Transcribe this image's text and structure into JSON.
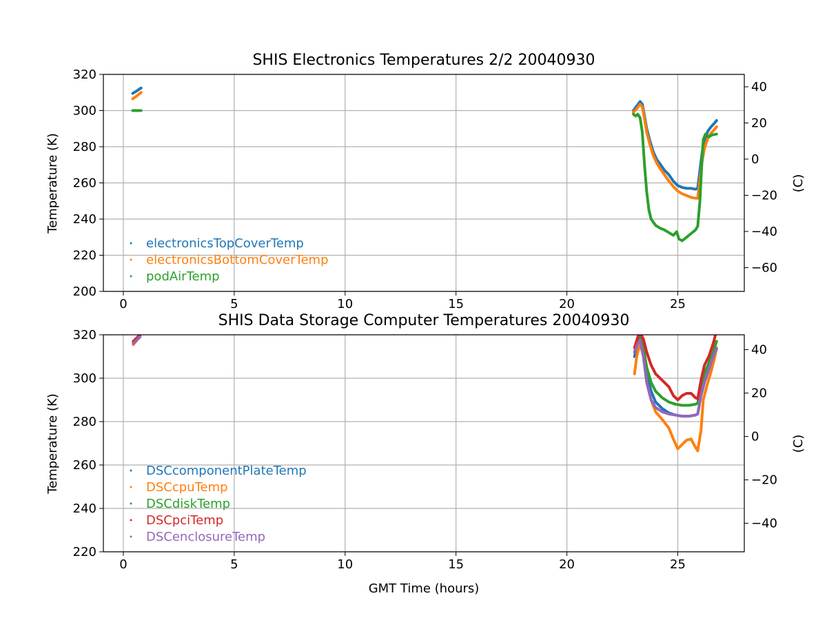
{
  "chart_data": [
    {
      "type": "line",
      "title": "SHIS Electronics Temperatures 2/2 20040930",
      "xlabel": "",
      "ylabel": "Temperature (K)",
      "y2label": "(C)",
      "xlim": [
        -0.9,
        28.0
      ],
      "ylim": [
        200,
        320
      ],
      "y2lim": [
        -73.15,
        46.85
      ],
      "xticks": [
        0,
        5,
        10,
        15,
        20,
        25
      ],
      "yticks": [
        200,
        220,
        240,
        260,
        280,
        300,
        320
      ],
      "y2ticks": [
        -60,
        -40,
        -20,
        0,
        20,
        40
      ],
      "grid": true,
      "legend_position": "lower-left",
      "series": [
        {
          "name": "electronicsTopCoverTemp",
          "color": "#1f77b4",
          "segments": [
            [
              [
                0.42,
                309.5
              ],
              [
                0.6,
                310.8
              ],
              [
                0.8,
                312.5
              ]
            ],
            [
              [
                23.0,
                300.0
              ],
              [
                23.15,
                302.5
              ],
              [
                23.3,
                305.0
              ],
              [
                23.4,
                303.5
              ],
              [
                23.5,
                297.0
              ],
              [
                23.6,
                290.0
              ],
              [
                23.75,
                283.0
              ],
              [
                23.9,
                277.0
              ],
              [
                24.05,
                273.0
              ],
              [
                24.2,
                270.5
              ],
              [
                24.4,
                267.0
              ],
              [
                24.6,
                264.5
              ],
              [
                24.8,
                261.0
              ],
              [
                25.0,
                258.5
              ],
              [
                25.2,
                257.5
              ],
              [
                25.4,
                257.0
              ],
              [
                25.6,
                257.0
              ],
              [
                25.8,
                256.5
              ],
              [
                25.9,
                257.0
              ],
              [
                26.0,
                267.0
              ],
              [
                26.1,
                277.0
              ],
              [
                26.2,
                283.0
              ],
              [
                26.35,
                288.5
              ],
              [
                26.5,
                291.0
              ],
              [
                26.65,
                293.0
              ],
              [
                26.75,
                294.5
              ]
            ]
          ]
        },
        {
          "name": "electronicsBottomCoverTemp",
          "color": "#ff7f0e",
          "segments": [
            [
              [
                0.42,
                306.5
              ],
              [
                0.6,
                308.0
              ],
              [
                0.8,
                310.0
              ]
            ],
            [
              [
                23.0,
                299.0
              ],
              [
                23.15,
                301.0
              ],
              [
                23.3,
                303.5
              ],
              [
                23.4,
                302.0
              ],
              [
                23.5,
                295.5
              ],
              [
                23.6,
                288.0
              ],
              [
                23.75,
                281.0
              ],
              [
                23.9,
                275.0
              ],
              [
                24.05,
                271.0
              ],
              [
                24.2,
                268.0
              ],
              [
                24.4,
                264.5
              ],
              [
                24.6,
                261.0
              ],
              [
                24.8,
                258.0
              ],
              [
                25.0,
                255.5
              ],
              [
                25.2,
                254.0
              ],
              [
                25.4,
                253.0
              ],
              [
                25.6,
                252.0
              ],
              [
                25.8,
                251.5
              ],
              [
                25.9,
                251.5
              ],
              [
                26.0,
                262.0
              ],
              [
                26.1,
                272.0
              ],
              [
                26.2,
                279.0
              ],
              [
                26.35,
                284.5
              ],
              [
                26.5,
                287.5
              ],
              [
                26.65,
                289.5
              ],
              [
                26.75,
                291.0
              ]
            ]
          ]
        },
        {
          "name": "podAirTemp",
          "color": "#2ca02c",
          "segments": [
            [
              [
                0.42,
                300.0
              ],
              [
                0.6,
                300.0
              ],
              [
                0.8,
                300.0
              ]
            ],
            [
              [
                23.0,
                298.0
              ],
              [
                23.1,
                297.0
              ],
              [
                23.2,
                298.0
              ],
              [
                23.3,
                296.0
              ],
              [
                23.4,
                288.0
              ],
              [
                23.5,
                270.0
              ],
              [
                23.6,
                255.0
              ],
              [
                23.7,
                245.0
              ],
              [
                23.8,
                240.0
              ],
              [
                24.0,
                236.5
              ],
              [
                24.2,
                235.0
              ],
              [
                24.4,
                234.0
              ],
              [
                24.6,
                232.5
              ],
              [
                24.8,
                231.0
              ],
              [
                24.95,
                233.0
              ],
              [
                25.05,
                229.0
              ],
              [
                25.2,
                228.0
              ],
              [
                25.4,
                230.0
              ],
              [
                25.6,
                232.0
              ],
              [
                25.8,
                234.0
              ],
              [
                25.9,
                236.0
              ],
              [
                26.0,
                250.0
              ],
              [
                26.1,
                275.0
              ],
              [
                26.15,
                284.0
              ],
              [
                26.25,
                287.0
              ],
              [
                26.4,
                285.5
              ],
              [
                26.55,
                286.5
              ],
              [
                26.75,
                287.0
              ]
            ]
          ]
        }
      ]
    },
    {
      "type": "line",
      "title": "SHIS Data Storage Computer Temperatures 20040930",
      "xlabel": "GMT Time (hours)",
      "ylabel": "Temperature (K)",
      "y2label": "(C)",
      "xlim": [
        -0.9,
        28.0
      ],
      "ylim": [
        220,
        320
      ],
      "y2lim": [
        -53.15,
        46.85
      ],
      "xticks": [
        0,
        5,
        10,
        15,
        20,
        25
      ],
      "yticks": [
        220,
        240,
        260,
        280,
        300,
        320
      ],
      "y2ticks": [
        -40,
        -20,
        0,
        20,
        40
      ],
      "grid": true,
      "legend_position": "lower-left",
      "series": [
        {
          "name": "DSCcomponentPlateTemp",
          "color": "#1f77b4",
          "segments": [
            [
              [
                0.45,
                316.0
              ],
              [
                0.65,
                318.5
              ],
              [
                0.75,
                319.5
              ]
            ],
            [
              [
                23.05,
                310.0
              ],
              [
                23.2,
                316.0
              ],
              [
                23.3,
                318.5
              ],
              [
                23.45,
                312.0
              ],
              [
                23.6,
                302.0
              ],
              [
                23.8,
                294.0
              ],
              [
                24.0,
                289.0
              ],
              [
                24.3,
                286.0
              ],
              [
                24.6,
                284.0
              ],
              [
                24.9,
                283.0
              ],
              [
                25.2,
                282.5
              ],
              [
                25.5,
                282.5
              ],
              [
                25.8,
                283.0
              ],
              [
                25.9,
                283.5
              ],
              [
                26.05,
                292.0
              ],
              [
                26.2,
                298.0
              ],
              [
                26.4,
                304.0
              ],
              [
                26.6,
                310.0
              ],
              [
                26.75,
                313.5
              ]
            ]
          ]
        },
        {
          "name": "DSCcpuTemp",
          "color": "#ff7f0e",
          "segments": [
            [
              [
                0.45,
                315.5
              ],
              [
                0.65,
                318.0
              ],
              [
                0.75,
                319.0
              ]
            ],
            [
              [
                23.05,
                302.0
              ],
              [
                23.15,
                310.0
              ],
              [
                23.3,
                316.0
              ],
              [
                23.45,
                310.0
              ],
              [
                23.6,
                298.0
              ],
              [
                23.8,
                290.0
              ],
              [
                24.0,
                284.5
              ],
              [
                24.3,
                281.0
              ],
              [
                24.6,
                277.0
              ],
              [
                24.8,
                272.0
              ],
              [
                25.0,
                267.5
              ],
              [
                25.2,
                269.5
              ],
              [
                25.4,
                271.5
              ],
              [
                25.6,
                272.0
              ],
              [
                25.75,
                269.0
              ],
              [
                25.9,
                266.5
              ],
              [
                26.05,
                276.0
              ],
              [
                26.15,
                290.0
              ],
              [
                26.3,
                296.0
              ],
              [
                26.5,
                303.0
              ],
              [
                26.65,
                309.0
              ],
              [
                26.75,
                314.0
              ]
            ]
          ]
        },
        {
          "name": "DSCdiskTemp",
          "color": "#2ca02c",
          "segments": [
            [
              [
                0.45,
                316.5
              ],
              [
                0.65,
                318.5
              ],
              [
                0.75,
                319.5
              ]
            ],
            [
              [
                23.05,
                312.0
              ],
              [
                23.2,
                317.0
              ],
              [
                23.3,
                319.0
              ],
              [
                23.45,
                314.0
              ],
              [
                23.6,
                305.0
              ],
              [
                23.8,
                298.0
              ],
              [
                24.0,
                294.0
              ],
              [
                24.3,
                291.0
              ],
              [
                24.6,
                289.0
              ],
              [
                24.9,
                288.0
              ],
              [
                25.2,
                287.5
              ],
              [
                25.5,
                287.5
              ],
              [
                25.8,
                288.0
              ],
              [
                25.9,
                288.5
              ],
              [
                26.05,
                296.0
              ],
              [
                26.2,
                302.0
              ],
              [
                26.4,
                307.0
              ],
              [
                26.6,
                312.0
              ],
              [
                26.75,
                317.0
              ]
            ]
          ]
        },
        {
          "name": "DSCpciTemp",
          "color": "#d62728",
          "segments": [
            [
              [
                0.45,
                317.0
              ],
              [
                0.65,
                319.0
              ],
              [
                0.75,
                320.0
              ]
            ],
            [
              [
                23.05,
                314.0
              ],
              [
                23.2,
                319.0
              ],
              [
                23.3,
                321.0
              ],
              [
                23.45,
                318.0
              ],
              [
                23.6,
                312.0
              ],
              [
                23.8,
                306.0
              ],
              [
                24.0,
                302.0
              ],
              [
                24.3,
                299.0
              ],
              [
                24.6,
                296.0
              ],
              [
                24.8,
                292.0
              ],
              [
                25.0,
                290.0
              ],
              [
                25.2,
                292.0
              ],
              [
                25.4,
                293.0
              ],
              [
                25.6,
                293.0
              ],
              [
                25.8,
                291.0
              ],
              [
                25.9,
                290.5
              ],
              [
                26.05,
                299.0
              ],
              [
                26.2,
                306.0
              ],
              [
                26.4,
                310.0
              ],
              [
                26.6,
                316.0
              ],
              [
                26.75,
                322.0
              ]
            ]
          ]
        },
        {
          "name": "DSCenclosureTemp",
          "color": "#9467bd",
          "segments": [
            [
              [
                0.45,
                316.0
              ],
              [
                0.65,
                318.0
              ],
              [
                0.75,
                319.0
              ]
            ],
            [
              [
                23.05,
                312.0
              ],
              [
                23.2,
                316.0
              ],
              [
                23.3,
                317.5
              ],
              [
                23.45,
                310.0
              ],
              [
                23.6,
                298.0
              ],
              [
                23.8,
                290.0
              ],
              [
                24.0,
                286.5
              ],
              [
                24.3,
                284.5
              ],
              [
                24.6,
                283.5
              ],
              [
                24.9,
                283.0
              ],
              [
                25.2,
                282.5
              ],
              [
                25.5,
                282.5
              ],
              [
                25.8,
                283.0
              ],
              [
                25.9,
                283.5
              ],
              [
                26.05,
                292.0
              ],
              [
                26.2,
                298.0
              ],
              [
                26.4,
                304.0
              ],
              [
                26.6,
                310.0
              ],
              [
                26.75,
                313.5
              ]
            ]
          ]
        }
      ]
    }
  ]
}
